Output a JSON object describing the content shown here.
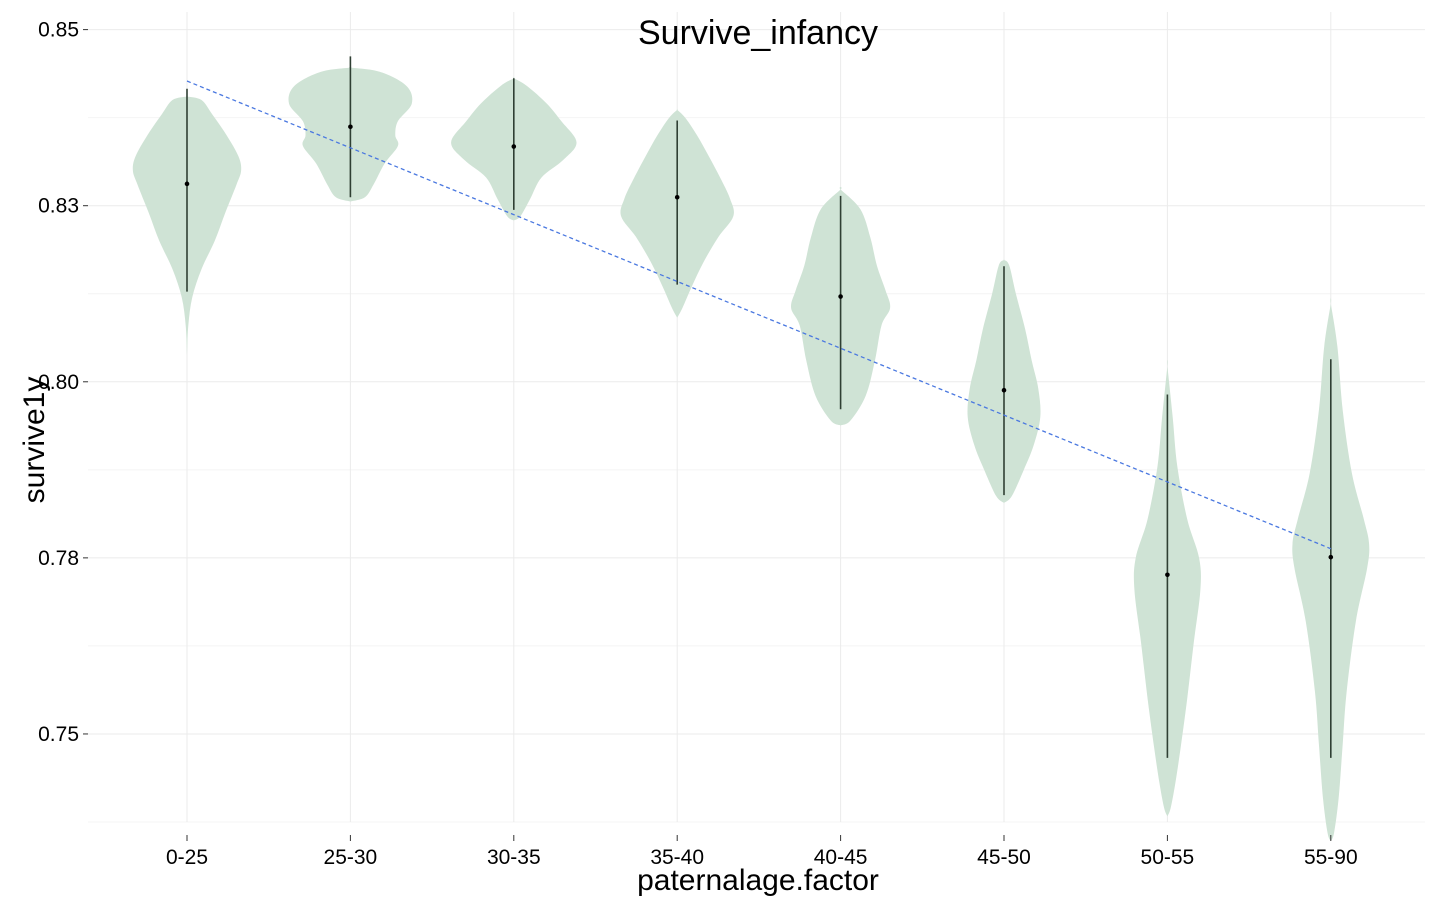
{
  "chart_data": {
    "type": "violin",
    "title": "Survive_infancy",
    "xlabel": "paternalage.factor",
    "ylabel": "survive1y",
    "ylim": [
      0.7375,
      0.8525
    ],
    "yticks": [
      0.75,
      0.775,
      0.8,
      0.825,
      0.85
    ],
    "ytick_labels": [
      "0.75",
      "0.78",
      "0.80",
      "0.83",
      "0.85"
    ],
    "grid": true,
    "categories": [
      "0-25",
      "25-30",
      "30-35",
      "35-40",
      "40-45",
      "45-50",
      "50-55",
      "55-90"
    ],
    "violins": [
      {
        "category": "0-25",
        "min": 0.8038,
        "max": 0.8405,
        "median": 0.8281,
        "range_low": 0.8128,
        "range_high": 0.8416,
        "profile": [
          [
            0.8038,
            0.0
          ],
          [
            0.808,
            0.02
          ],
          [
            0.812,
            0.08
          ],
          [
            0.816,
            0.22
          ],
          [
            0.82,
            0.42
          ],
          [
            0.824,
            0.58
          ],
          [
            0.828,
            0.75
          ],
          [
            0.83,
            0.82
          ],
          [
            0.832,
            0.78
          ],
          [
            0.835,
            0.6
          ],
          [
            0.838,
            0.38
          ],
          [
            0.84,
            0.22
          ],
          [
            0.8405,
            0.0
          ]
        ]
      },
      {
        "category": "25-30",
        "min": 0.8256,
        "max": 0.8446,
        "median": 0.8362,
        "range_low": 0.8262,
        "range_high": 0.8462,
        "profile": [
          [
            0.8256,
            0.0
          ],
          [
            0.8262,
            0.22
          ],
          [
            0.828,
            0.35
          ],
          [
            0.831,
            0.52
          ],
          [
            0.8335,
            0.72
          ],
          [
            0.835,
            0.68
          ],
          [
            0.837,
            0.72
          ],
          [
            0.8395,
            0.93
          ],
          [
            0.842,
            0.85
          ],
          [
            0.844,
            0.45
          ],
          [
            0.8446,
            0.0
          ]
        ]
      },
      {
        "category": "30-35",
        "min": 0.8229,
        "max": 0.8431,
        "median": 0.8334,
        "range_low": 0.8244,
        "range_high": 0.8431,
        "profile": [
          [
            0.8229,
            0.0
          ],
          [
            0.8235,
            0.1
          ],
          [
            0.826,
            0.25
          ],
          [
            0.829,
            0.42
          ],
          [
            0.8315,
            0.75
          ],
          [
            0.834,
            0.95
          ],
          [
            0.837,
            0.72
          ],
          [
            0.8395,
            0.5
          ],
          [
            0.842,
            0.2
          ],
          [
            0.8431,
            0.0
          ]
        ]
      },
      {
        "category": "35-40",
        "min": 0.8091,
        "max": 0.8386,
        "median": 0.8262,
        "range_low": 0.8138,
        "range_high": 0.8371,
        "profile": [
          [
            0.8091,
            0.0
          ],
          [
            0.8105,
            0.08
          ],
          [
            0.8135,
            0.22
          ],
          [
            0.817,
            0.4
          ],
          [
            0.8205,
            0.62
          ],
          [
            0.8235,
            0.85
          ],
          [
            0.826,
            0.8
          ],
          [
            0.829,
            0.65
          ],
          [
            0.832,
            0.48
          ],
          [
            0.835,
            0.3
          ],
          [
            0.8375,
            0.12
          ],
          [
            0.8386,
            0.0
          ]
        ]
      },
      {
        "category": "40-45",
        "min": 0.7938,
        "max": 0.8273,
        "median": 0.8121,
        "range_low": 0.7961,
        "range_high": 0.8264,
        "profile": [
          [
            0.7938,
            0.0
          ],
          [
            0.7945,
            0.15
          ],
          [
            0.798,
            0.38
          ],
          [
            0.803,
            0.52
          ],
          [
            0.808,
            0.62
          ],
          [
            0.8105,
            0.75
          ],
          [
            0.813,
            0.68
          ],
          [
            0.8165,
            0.55
          ],
          [
            0.8205,
            0.45
          ],
          [
            0.8245,
            0.3
          ],
          [
            0.8273,
            0.0
          ]
        ]
      },
      {
        "category": "45-50",
        "min": 0.7828,
        "max": 0.8173,
        "median": 0.7988,
        "range_low": 0.7839,
        "range_high": 0.8164,
        "profile": [
          [
            0.7828,
            0.0
          ],
          [
            0.7838,
            0.12
          ],
          [
            0.7875,
            0.3
          ],
          [
            0.791,
            0.45
          ],
          [
            0.795,
            0.55
          ],
          [
            0.799,
            0.52
          ],
          [
            0.803,
            0.42
          ],
          [
            0.8075,
            0.32
          ],
          [
            0.8125,
            0.18
          ],
          [
            0.8165,
            0.08
          ],
          [
            0.8173,
            0.0
          ]
        ]
      },
      {
        "category": "50-55",
        "min": 0.7383,
        "max": 0.8022,
        "median": 0.7726,
        "range_low": 0.7466,
        "range_high": 0.7982,
        "profile": [
          [
            0.7383,
            0.0
          ],
          [
            0.7395,
            0.05
          ],
          [
            0.743,
            0.12
          ],
          [
            0.748,
            0.2
          ],
          [
            0.755,
            0.3
          ],
          [
            0.763,
            0.4
          ],
          [
            0.7705,
            0.5
          ],
          [
            0.775,
            0.48
          ],
          [
            0.7805,
            0.3
          ],
          [
            0.788,
            0.15
          ],
          [
            0.795,
            0.08
          ],
          [
            0.8022,
            0.0
          ]
        ]
      },
      {
        "category": "55-90",
        "min": 0.7348,
        "max": 0.8111,
        "median": 0.7751,
        "range_low": 0.7466,
        "range_high": 0.8032,
        "profile": [
          [
            0.7348,
            0.0
          ],
          [
            0.736,
            0.05
          ],
          [
            0.741,
            0.12
          ],
          [
            0.7485,
            0.18
          ],
          [
            0.756,
            0.24
          ],
          [
            0.766,
            0.38
          ],
          [
            0.7735,
            0.55
          ],
          [
            0.777,
            0.58
          ],
          [
            0.7805,
            0.5
          ],
          [
            0.787,
            0.32
          ],
          [
            0.796,
            0.18
          ],
          [
            0.805,
            0.1
          ],
          [
            0.8111,
            0.0
          ]
        ]
      }
    ],
    "trend_line": {
      "x_start": "0-25",
      "y_start": 0.8427,
      "x_end": "55-90",
      "y_end": 0.7763
    },
    "colors": {
      "violin_fill": "#cfe3d5",
      "range_line": "#2f3f33",
      "median": "#000000",
      "trend": "#4a78e0"
    }
  }
}
